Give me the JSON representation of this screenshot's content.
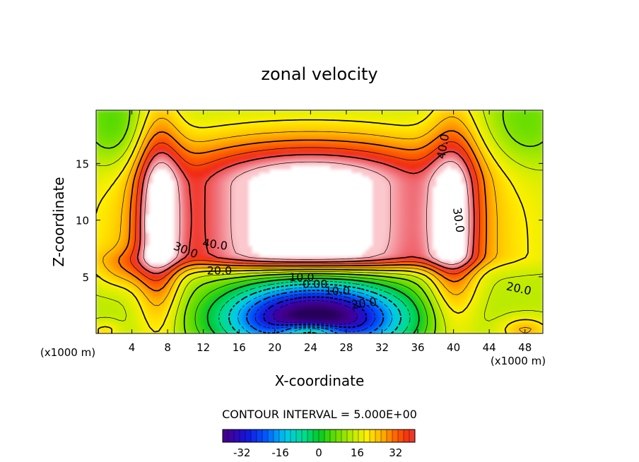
{
  "chart_data": {
    "type": "heatmap",
    "title": "zonal velocity",
    "xlabel": "X-coordinate",
    "ylabel": "Z-coordinate",
    "x_unit_label": "(x1000 m)",
    "x_range": [
      0,
      50
    ],
    "y_range": [
      0,
      19.7
    ],
    "x_ticks": [
      4,
      8,
      12,
      16,
      20,
      24,
      28,
      32,
      36,
      40,
      44,
      48
    ],
    "x_tick_labels": [
      "4",
      "8",
      "12",
      "16",
      "20",
      "24",
      "28",
      "32",
      "36",
      "40",
      "44",
      "48"
    ],
    "y_ticks": [
      5,
      10,
      15
    ],
    "y_tick_labels": [
      "5",
      "10",
      "15"
    ],
    "contour_labels": [
      {
        "text": "40.0",
        "x": 38.9,
        "z": 16.5,
        "angle": -80
      },
      {
        "text": "40.0",
        "x": 13.3,
        "z": 7.8,
        "angle": 8
      },
      {
        "text": "30.0",
        "x": 10.0,
        "z": 7.3,
        "angle": 22
      },
      {
        "text": "30.0",
        "x": 40.5,
        "z": 10.0,
        "angle": 82
      },
      {
        "text": "20.0",
        "x": 13.8,
        "z": 5.5,
        "angle": 0
      },
      {
        "text": "20.0",
        "x": 47.3,
        "z": 3.9,
        "angle": 12
      },
      {
        "text": "10.0",
        "x": 23.0,
        "z": 4.9,
        "angle": 0
      },
      {
        "text": "0.00",
        "x": 24.5,
        "z": 4.3,
        "angle": 0
      },
      {
        "text": "10.0",
        "x": 27.0,
        "z": 3.7,
        "angle": 0
      },
      {
        "text": "20.0",
        "x": 30.0,
        "z": 2.6,
        "angle": -8
      }
    ],
    "contour_interval_label": "CONTOUR INTERVAL = 5.000E+00",
    "colorbar": {
      "range": [
        -40,
        40
      ],
      "ticks": [
        -32,
        -16,
        0,
        16,
        32
      ],
      "tick_labels": [
        "-32",
        "-16",
        "0",
        "16",
        "32"
      ]
    },
    "description_regions": {
      "jet_max_above": 45,
      "min_below": -40
    }
  }
}
